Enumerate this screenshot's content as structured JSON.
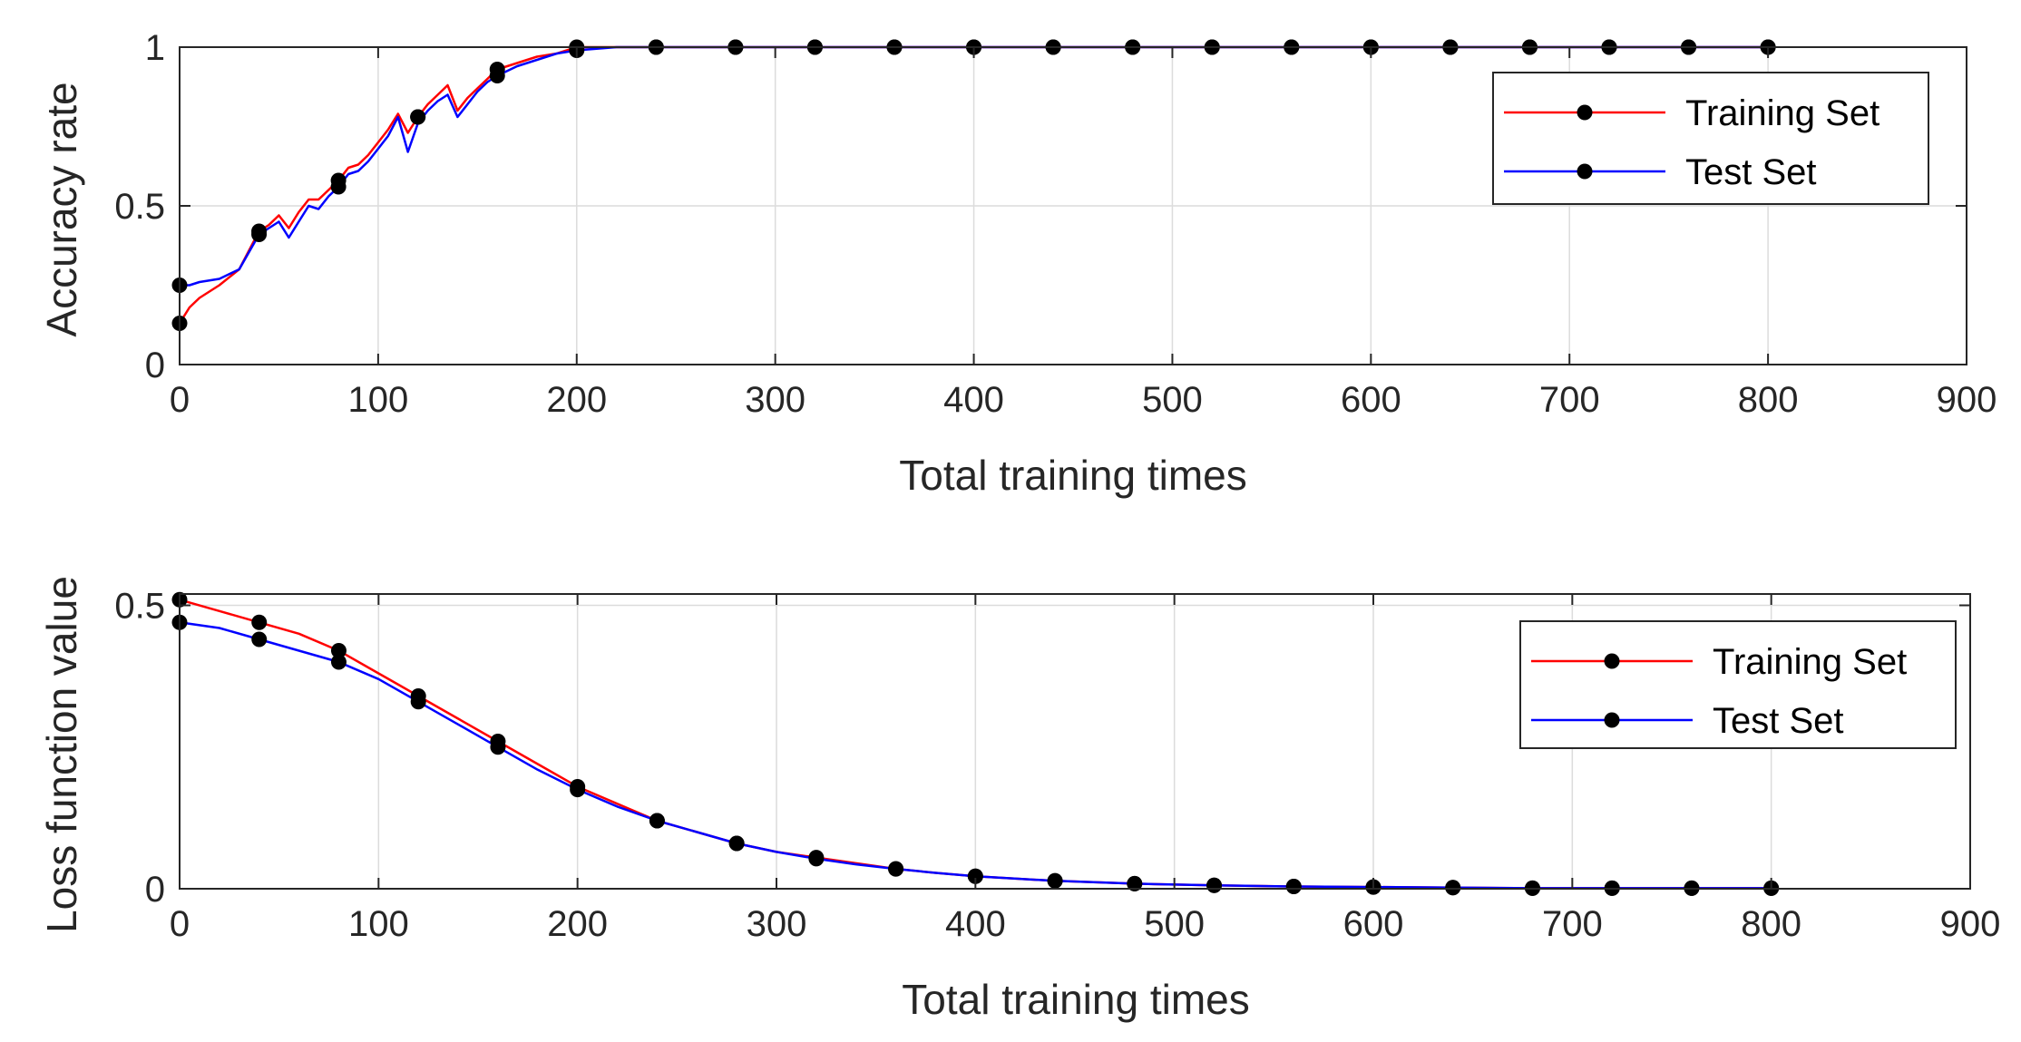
{
  "chart_data": [
    {
      "type": "line",
      "xlabel": "Total training times",
      "ylabel": "Accuracy rate",
      "xlim": [
        0,
        900
      ],
      "ylim": [
        0,
        1
      ],
      "xticks": [
        0,
        100,
        200,
        300,
        400,
        500,
        600,
        700,
        800,
        900
      ],
      "xtick_labels": [
        "0",
        "100",
        "200",
        "300",
        "400",
        "500",
        "600",
        "700",
        "800",
        "900"
      ],
      "yticks": [
        0,
        0.5,
        1
      ],
      "ytick_labels": [
        "0",
        "0.5",
        "1"
      ],
      "grid": true,
      "legend_position": "top-right",
      "series": [
        {
          "name": "Training Set",
          "color": "#ff0000",
          "x": [
            0,
            5,
            10,
            20,
            30,
            40,
            45,
            50,
            55,
            60,
            65,
            70,
            75,
            80,
            85,
            90,
            95,
            100,
            105,
            110,
            115,
            120,
            125,
            130,
            135,
            140,
            145,
            150,
            155,
            160,
            170,
            180,
            190,
            200,
            220,
            240,
            280,
            320,
            360,
            400,
            440,
            480,
            520,
            560,
            600,
            640,
            680,
            720,
            760,
            800
          ],
          "y": [
            0.13,
            0.18,
            0.21,
            0.25,
            0.3,
            0.42,
            0.44,
            0.47,
            0.43,
            0.48,
            0.52,
            0.52,
            0.55,
            0.58,
            0.62,
            0.63,
            0.66,
            0.7,
            0.74,
            0.79,
            0.73,
            0.78,
            0.82,
            0.85,
            0.88,
            0.8,
            0.84,
            0.87,
            0.9,
            0.93,
            0.95,
            0.97,
            0.98,
            1,
            1,
            1,
            1,
            1,
            1,
            1,
            1,
            1,
            1,
            1,
            1,
            1,
            1,
            1,
            1,
            1
          ],
          "markers_x": [
            0,
            40,
            80,
            120,
            160,
            200,
            240,
            280,
            320,
            360,
            400,
            440,
            480,
            520,
            560,
            600,
            640,
            680,
            720,
            760,
            800
          ],
          "markers_y": [
            0.13,
            0.42,
            0.58,
            0.78,
            0.93,
            1,
            1,
            1,
            1,
            1,
            1,
            1,
            1,
            1,
            1,
            1,
            1,
            1,
            1,
            1,
            1
          ]
        },
        {
          "name": "Test Set",
          "color": "#0000ff",
          "x": [
            0,
            5,
            10,
            20,
            30,
            40,
            45,
            50,
            55,
            60,
            65,
            70,
            75,
            80,
            85,
            90,
            95,
            100,
            105,
            110,
            115,
            120,
            125,
            130,
            135,
            140,
            145,
            150,
            155,
            160,
            170,
            180,
            190,
            200,
            220,
            240,
            280,
            320,
            360,
            400,
            440,
            480,
            520,
            560,
            600,
            640,
            680,
            720,
            760,
            800
          ],
          "y": [
            0.25,
            0.25,
            0.26,
            0.27,
            0.3,
            0.41,
            0.43,
            0.45,
            0.4,
            0.45,
            0.5,
            0.49,
            0.53,
            0.56,
            0.6,
            0.61,
            0.64,
            0.68,
            0.72,
            0.78,
            0.67,
            0.76,
            0.8,
            0.83,
            0.85,
            0.78,
            0.82,
            0.86,
            0.89,
            0.91,
            0.94,
            0.96,
            0.98,
            0.99,
            1,
            1,
            1,
            1,
            1,
            1,
            1,
            1,
            1,
            1,
            1,
            1,
            1,
            1,
            1,
            1
          ],
          "markers_x": [
            0,
            40,
            80,
            120,
            160,
            200,
            240,
            280,
            320,
            360,
            400,
            440,
            480,
            520,
            560,
            600,
            640,
            680,
            720,
            760,
            800
          ],
          "markers_y": [
            0.25,
            0.41,
            0.56,
            0.78,
            0.91,
            0.99,
            1,
            1,
            1,
            1,
            1,
            1,
            1,
            1,
            1,
            1,
            1,
            1,
            1,
            1,
            1
          ]
        }
      ]
    },
    {
      "type": "line",
      "xlabel": "Total training times",
      "ylabel": "Loss function value",
      "xlim": [
        0,
        900
      ],
      "ylim": [
        0,
        0.52
      ],
      "xticks": [
        0,
        100,
        200,
        300,
        400,
        500,
        600,
        700,
        800,
        900
      ],
      "xtick_labels": [
        "0",
        "100",
        "200",
        "300",
        "400",
        "500",
        "600",
        "700",
        "800",
        "900"
      ],
      "yticks": [
        0,
        0.5
      ],
      "ytick_labels": [
        "0",
        "0.5"
      ],
      "grid": true,
      "legend_position": "top-right",
      "series": [
        {
          "name": "Training Set",
          "color": "#ff0000",
          "x": [
            0,
            20,
            40,
            60,
            80,
            100,
            110,
            120,
            130,
            140,
            160,
            180,
            200,
            220,
            240,
            260,
            280,
            300,
            320,
            340,
            360,
            380,
            400,
            440,
            480,
            520,
            560,
            600,
            640,
            680,
            720,
            760,
            800
          ],
          "y": [
            0.51,
            0.49,
            0.47,
            0.45,
            0.42,
            0.38,
            0.36,
            0.34,
            0.32,
            0.3,
            0.26,
            0.22,
            0.18,
            0.15,
            0.12,
            0.1,
            0.08,
            0.065,
            0.055,
            0.045,
            0.035,
            0.028,
            0.022,
            0.014,
            0.009,
            0.006,
            0.004,
            0.003,
            0.002,
            0.001,
            0.001,
            0.001,
            0.001
          ],
          "markers_x": [
            0,
            40,
            80,
            120,
            160,
            200,
            240,
            280,
            320,
            360,
            400,
            440,
            480,
            520,
            560,
            600,
            640,
            680,
            720,
            760,
            800
          ],
          "markers_y": [
            0.51,
            0.47,
            0.42,
            0.34,
            0.26,
            0.18,
            0.12,
            0.08,
            0.055,
            0.035,
            0.022,
            0.014,
            0.009,
            0.006,
            0.004,
            0.003,
            0.002,
            0.001,
            0.001,
            0.001,
            0.001
          ]
        },
        {
          "name": "Test Set",
          "color": "#0000ff",
          "x": [
            0,
            20,
            40,
            60,
            80,
            100,
            110,
            120,
            130,
            140,
            160,
            180,
            200,
            220,
            240,
            260,
            280,
            300,
            320,
            340,
            360,
            380,
            400,
            440,
            480,
            520,
            560,
            600,
            640,
            680,
            720,
            760,
            800
          ],
          "y": [
            0.47,
            0.46,
            0.44,
            0.42,
            0.4,
            0.37,
            0.35,
            0.33,
            0.31,
            0.29,
            0.25,
            0.21,
            0.175,
            0.145,
            0.12,
            0.1,
            0.08,
            0.065,
            0.053,
            0.043,
            0.035,
            0.028,
            0.022,
            0.014,
            0.009,
            0.006,
            0.004,
            0.003,
            0.002,
            0.001,
            0.001,
            0.001,
            0.001
          ],
          "markers_x": [
            0,
            40,
            80,
            120,
            160,
            200,
            240,
            280,
            320,
            360,
            400,
            440,
            480,
            520,
            560,
            600,
            640,
            680,
            720,
            760,
            800
          ],
          "markers_y": [
            0.47,
            0.44,
            0.4,
            0.33,
            0.25,
            0.175,
            0.12,
            0.08,
            0.053,
            0.035,
            0.022,
            0.014,
            0.009,
            0.006,
            0.004,
            0.003,
            0.002,
            0.001,
            0.001,
            0.001,
            0.001
          ]
        }
      ]
    }
  ]
}
